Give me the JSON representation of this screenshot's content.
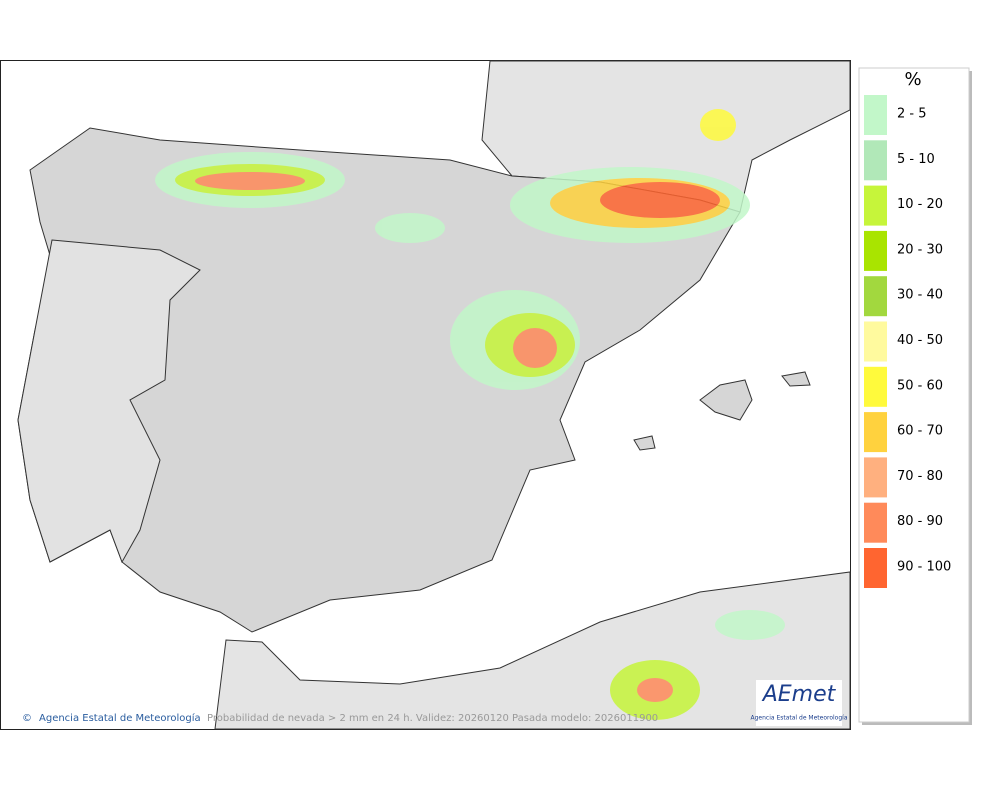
{
  "legend": {
    "title": "%",
    "items": [
      {
        "label": "2 - 5",
        "color": "#c2f7c9"
      },
      {
        "label": "5 - 10",
        "color": "#b1e8b8"
      },
      {
        "label": "10 - 20",
        "color": "#c6f53a"
      },
      {
        "label": "20 - 30",
        "color": "#a9e400"
      },
      {
        "label": "30 - 40",
        "color": "#a2d83e"
      },
      {
        "label": "40 - 50",
        "color": "#fffa9e"
      },
      {
        "label": "50 - 60",
        "color": "#fffa3c"
      },
      {
        "label": "60 - 70",
        "color": "#ffd23e"
      },
      {
        "label": "70 - 80",
        "color": "#ffb07f"
      },
      {
        "label": "80 - 90",
        "color": "#ff8a5a"
      },
      {
        "label": "90 - 100",
        "color": "#ff6530"
      }
    ]
  },
  "footer": {
    "credit": "Agencia Estatal de Meteorología",
    "caption": "Probabilidad de nevada > 2 mm en 24 h. Validez: 20260120 Pasada modelo: 2026011900"
  },
  "logo": {
    "text": "AEmet",
    "subtitle": "Agencia Estatal de Meteorología"
  }
}
